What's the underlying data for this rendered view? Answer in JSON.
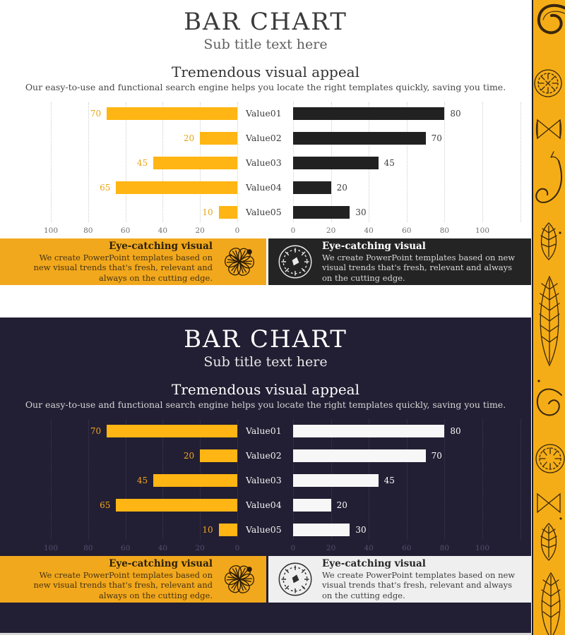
{
  "slide": {
    "title": "BAR CHART",
    "subtitle": "Sub title text here",
    "heading": "Tremendous visual appeal",
    "description": "Our easy-to-use and functional search engine helps you locate the right templates quickly, saving you time."
  },
  "callout": {
    "heading": "Eye-catching visual",
    "body": "We create PowerPoint templates based on new visual trends that's fresh, relevant and always on the cutting edge."
  },
  "chart_data": {
    "type": "bar",
    "orientation": "horizontal",
    "variant": "tornado",
    "title": "",
    "categories": [
      "Value01",
      "Value02",
      "Value03",
      "Value04",
      "Value05"
    ],
    "series": [
      {
        "name": "left-yellow",
        "values": [
          70,
          20,
          45,
          65,
          10
        ]
      },
      {
        "name": "right-dark",
        "values": [
          80,
          70,
          45,
          20,
          30
        ]
      }
    ],
    "left_axis_ticks": [
      "100",
      "80",
      "60",
      "40",
      "20",
      "0"
    ],
    "right_axis_ticks": [
      "0",
      "20",
      "40",
      "60",
      "80",
      "100"
    ],
    "xlim": [
      0,
      100
    ],
    "grid": "dotted-vertical",
    "legend": "none"
  },
  "colors": {
    "accent_yellow": "#f2a81d",
    "bar_yellow": "#ffb513",
    "dark_box": "#242424",
    "dark_slide_bg": "#221e33",
    "light_box": "#efefef",
    "strip_yellow": "#f5ad17",
    "bottom_edge_gray": "#d8d8d8"
  },
  "icons": {
    "flower": "hand-drawn-flower-illustration",
    "slice": "hand-drawn-fruit-slice-illustration",
    "strip": "hand-drawn-food-doodles-pattern"
  }
}
